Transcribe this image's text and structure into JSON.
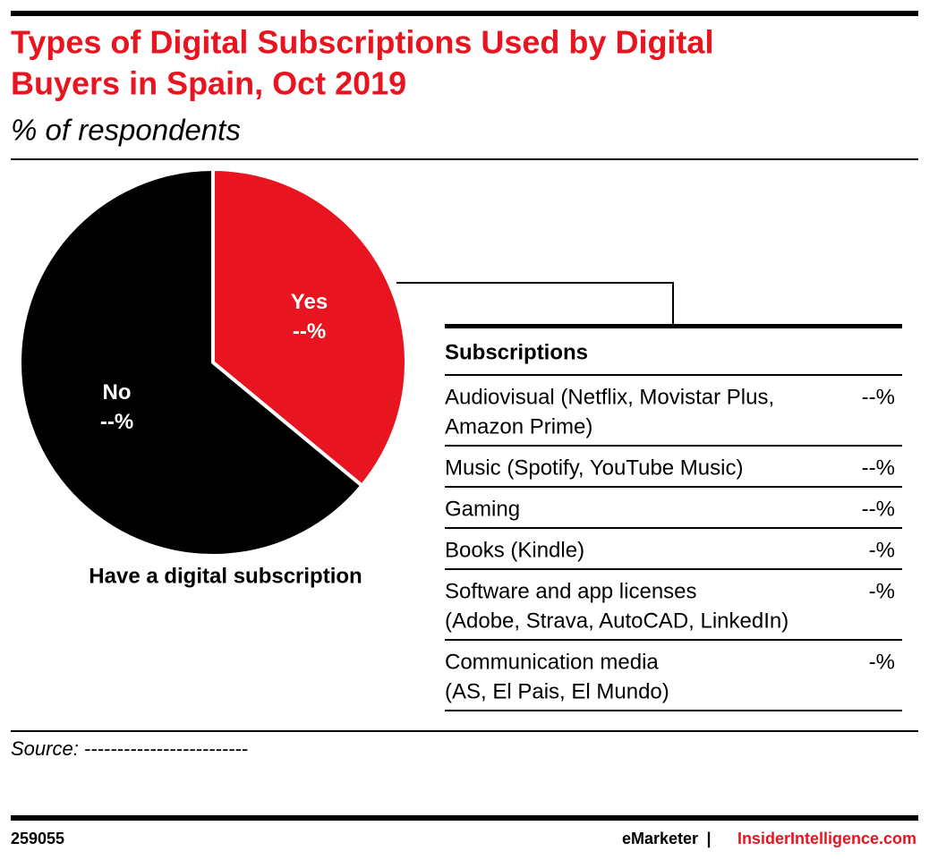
{
  "chart_data": {
    "type": "pie",
    "title": [
      "Types of Digital Subscriptions Used by Digital",
      "Buyers in Spain, Oct 2019"
    ],
    "subtitle": "% of respondents",
    "categories": [
      "Yes",
      "No"
    ],
    "values": [
      36,
      64
    ],
    "value_labels": [
      "--%",
      "--%"
    ],
    "colors": [
      "#e8141f",
      "#000000"
    ],
    "caption": "Have a digital subscription"
  },
  "table": {
    "header": "Subscriptions",
    "rows": [
      {
        "label": [
          "Audiovisual (Netflix, Movistar Plus,",
          "Amazon Prime)"
        ],
        "value": "--%"
      },
      {
        "label": [
          "Music (Spotify, YouTube Music)"
        ],
        "value": "--%"
      },
      {
        "label": [
          "Gaming"
        ],
        "value": "--%"
      },
      {
        "label": [
          "Books (Kindle)"
        ],
        "value": "-%"
      },
      {
        "label": [
          "Software and app licenses",
          "(Adobe, Strava, AutoCAD, LinkedIn)"
        ],
        "value": "-%"
      },
      {
        "label": [
          "Communication media",
          "(AS, El Pais, El Mundo)"
        ],
        "value": "-%"
      }
    ]
  },
  "source": "Source: -------------------------",
  "footer": {
    "id": "259055",
    "brand": "eMarketer",
    "separator": "|",
    "site": "InsiderIntelligence.com"
  }
}
